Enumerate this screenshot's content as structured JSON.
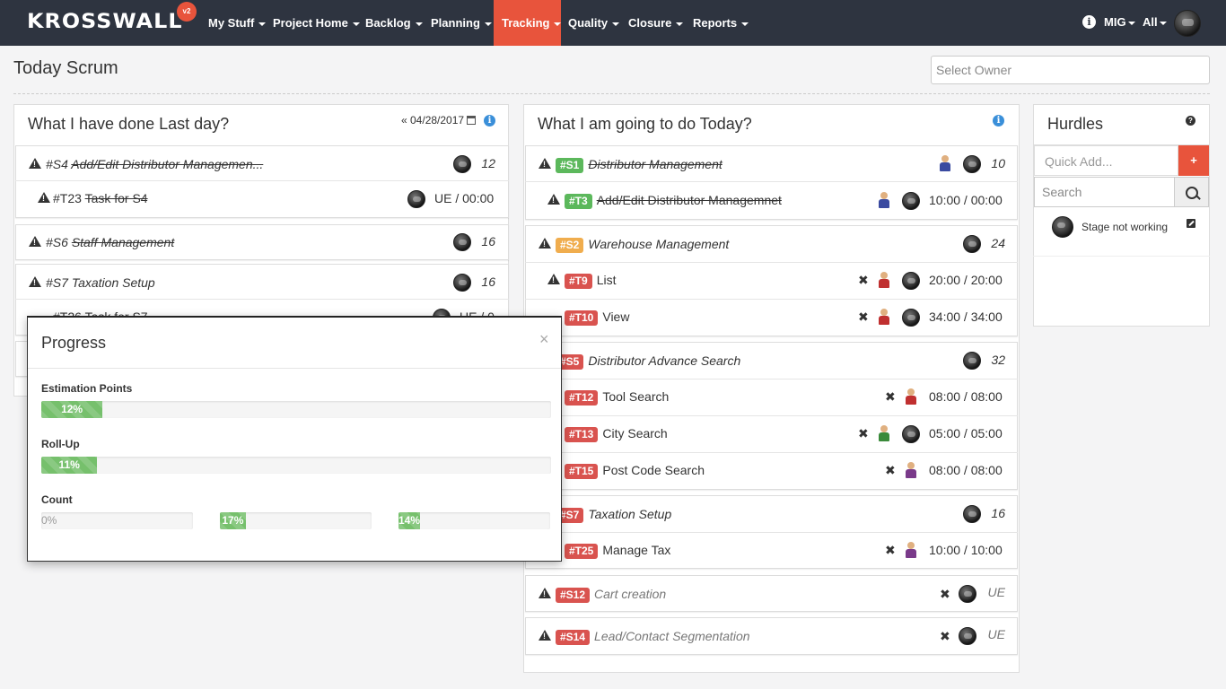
{
  "nav": {
    "brand": "KROSSWALL",
    "brand_badge": "v2",
    "items": [
      {
        "label": "My Stuff"
      },
      {
        "label": "Project Home"
      },
      {
        "label": "Backlog"
      },
      {
        "label": "Planning"
      },
      {
        "label": "Tracking",
        "active": true
      },
      {
        "label": "Quality"
      },
      {
        "label": "Closure"
      },
      {
        "label": "Reports"
      }
    ],
    "org": "MIG",
    "scope": "All"
  },
  "header": {
    "title": "Today Scrum",
    "owner_placeholder": "Select Owner"
  },
  "done": {
    "title": "What I have done Last day?",
    "date": "« 04/28/2017",
    "items": [
      {
        "id": "#S4",
        "name": "Add/Edit Distributor Managemen...",
        "points": "12",
        "task": {
          "id": "#T23",
          "name": "Task for S4",
          "time_a": "UE",
          "time_b": "00:00"
        }
      },
      {
        "id": "#S6",
        "name": "Staff Management",
        "points": "16"
      },
      {
        "id": "#S7",
        "name": "Taxation Setup",
        "points": "16",
        "task": {
          "id": "#T26",
          "name": "Task for S7",
          "time_a": "UE",
          "time_b": "0"
        }
      }
    ]
  },
  "today": {
    "title": "What I am going to do Today?",
    "stories": [
      {
        "id": "#S1",
        "name": "Distributor Management",
        "points": "10",
        "tasks": [
          {
            "id": "#T3",
            "name": "Add/Edit Distributor Managemnet",
            "time": "10:00 / 00:00"
          }
        ]
      },
      {
        "id": "#S2",
        "name": "Warehouse Management",
        "points": "24",
        "tasks": [
          {
            "id": "#T9",
            "name": "List",
            "time": "20:00 / 20:00"
          },
          {
            "id": "#T10",
            "name": "View",
            "time": "34:00 / 34:00"
          }
        ]
      },
      {
        "id": "#S5",
        "name": "Distributor Advance Search",
        "points": "32",
        "tasks": [
          {
            "id": "#T12",
            "name": "Tool Search",
            "time": "08:00 / 08:00"
          },
          {
            "id": "#T13",
            "name": "City Search",
            "time": "05:00 / 05:00"
          },
          {
            "id": "#T15",
            "name": "Post Code Search",
            "time": "08:00 / 08:00"
          }
        ]
      },
      {
        "id": "#S7",
        "name": "Taxation Setup",
        "points": "16",
        "tasks": [
          {
            "id": "#T25",
            "name": "Manage Tax",
            "time": "10:00 / 10:00"
          }
        ]
      },
      {
        "id": "#S12",
        "name": "Cart creation",
        "points": "UE"
      },
      {
        "id": "#S14",
        "name": "Lead/Contact Segmentation",
        "points": "UE"
      }
    ]
  },
  "hurdles": {
    "title": "Hurdles",
    "quick_add_placeholder": "Quick Add...",
    "plus": "+",
    "search_placeholder": "Search",
    "items": [
      {
        "text": "Stage not working"
      }
    ]
  },
  "progress": {
    "title": "Progress",
    "close": "×",
    "estimation": {
      "label": "Estimation Points",
      "value": 12,
      "text": "12%"
    },
    "rollup": {
      "label": "Roll-Up",
      "value": 11,
      "text": "11%"
    },
    "count": {
      "label": "Count",
      "bars": [
        {
          "value": 0,
          "text": "0%"
        },
        {
          "value": 17,
          "text": "17%"
        },
        {
          "value": 14,
          "text": "14%"
        }
      ]
    }
  },
  "colors": {
    "accent": "#e8543c",
    "navbar": "#2e3440",
    "label_green": "#5cb85c",
    "label_orange": "#f0ad4e",
    "label_red": "#d9534f",
    "progress": "#76c06c"
  }
}
